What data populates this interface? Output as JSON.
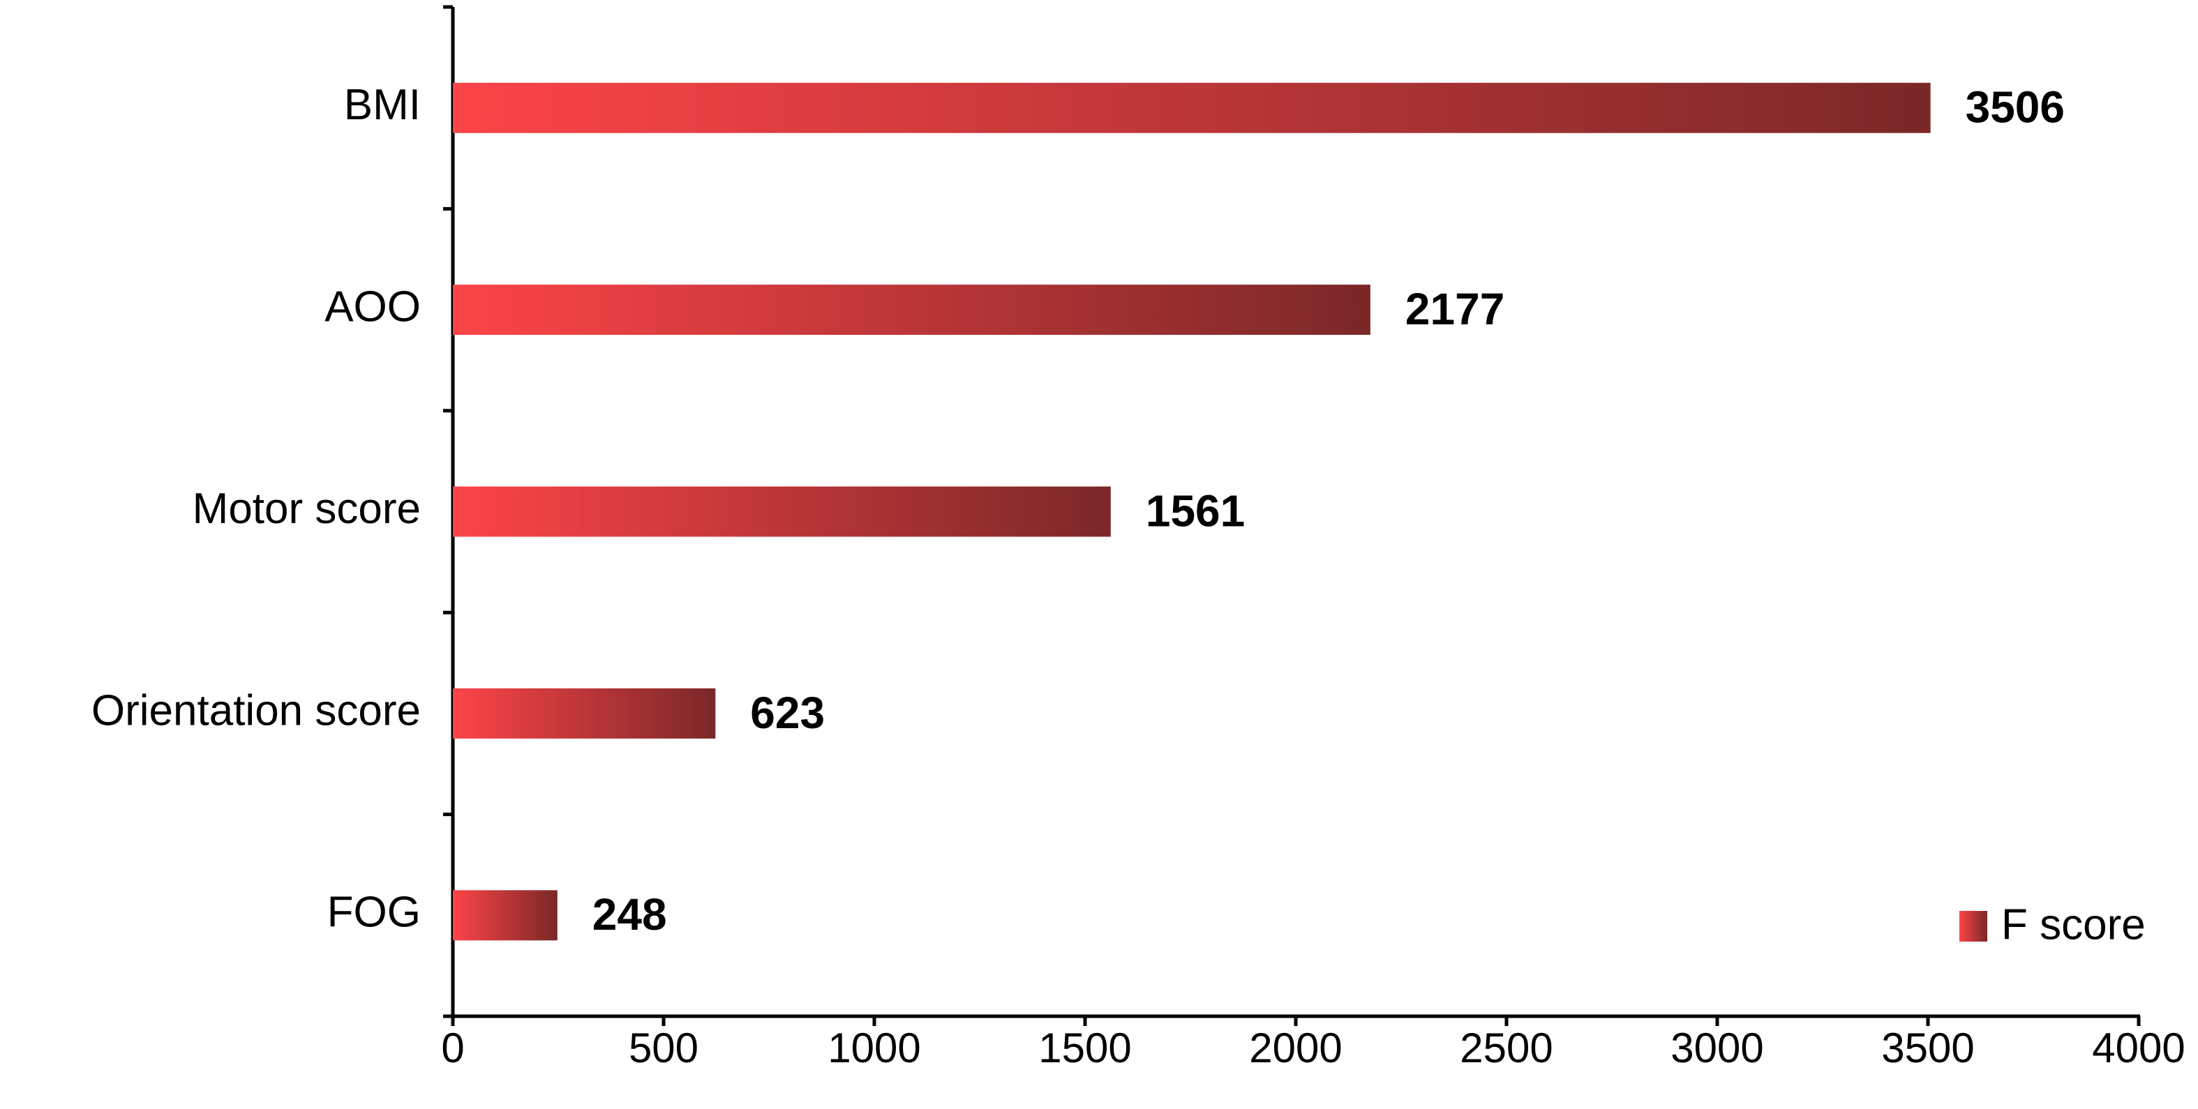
{
  "chart_data": {
    "type": "bar",
    "orientation": "horizontal",
    "categories": [
      "BMI",
      "AOO",
      "Motor score",
      "Orientation score",
      "FOG"
    ],
    "series": [
      {
        "name": "F score",
        "color": [
          "#fc4448",
          "#7b2828"
        ],
        "values": [
          3506,
          2177,
          1561,
          623,
          248
        ]
      }
    ],
    "xlim": [
      0,
      4000
    ],
    "xticks": [
      0,
      500,
      1000,
      1500,
      2000,
      2500,
      3000,
      3500,
      4000
    ],
    "grid": false,
    "legend": "lower right"
  }
}
